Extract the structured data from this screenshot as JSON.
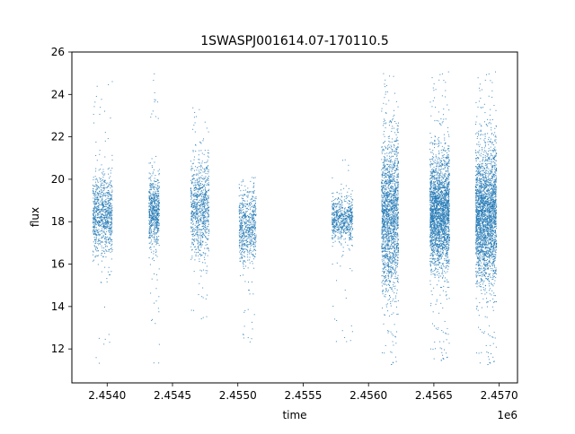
{
  "chart_data": {
    "type": "scatter",
    "title": "1SWASPJ001614.07-170110.5",
    "xlabel": "time",
    "ylabel": "flux",
    "x_offset_label": "1e6",
    "xlim": [
      2453730,
      2457140
    ],
    "ylim": [
      10.4,
      26.0
    ],
    "x_ticks": [
      2454000,
      2454500,
      2455000,
      2455500,
      2456000,
      2456500,
      2457000
    ],
    "x_tick_labels": [
      "2.4540",
      "2.4545",
      "2.4550",
      "2.4555",
      "2.4560",
      "2.4565",
      "2.4570"
    ],
    "y_ticks": [
      12,
      14,
      16,
      18,
      20,
      22,
      24,
      26
    ],
    "y_tick_labels": [
      "12",
      "14",
      "16",
      "18",
      "20",
      "22",
      "24",
      "26"
    ],
    "grid": false,
    "marker_color": "#1f77b4",
    "series": [
      {
        "clusters": [
          {
            "x_start": 2453890,
            "x_end": 2454040,
            "center": 18.3,
            "spread": 1.7,
            "y_min": 11.1,
            "y_max": 24.8,
            "density": 900
          },
          {
            "x_start": 2454320,
            "x_end": 2454400,
            "center": 18.4,
            "spread": 1.5,
            "y_min": 11.3,
            "y_max": 25.0,
            "density": 650
          },
          {
            "x_start": 2454640,
            "x_end": 2454780,
            "center": 18.6,
            "spread": 2.0,
            "y_min": 13.3,
            "y_max": 23.6,
            "density": 850
          },
          {
            "x_start": 2455010,
            "x_end": 2455140,
            "center": 17.9,
            "spread": 1.6,
            "y_min": 12.1,
            "y_max": 20.1,
            "density": 650
          },
          {
            "x_start": 2455720,
            "x_end": 2455880,
            "center": 18.1,
            "spread": 0.9,
            "y_min": 12.2,
            "y_max": 21.0,
            "density": 650
          },
          {
            "x_start": 2456100,
            "x_end": 2456230,
            "center": 18.3,
            "spread": 3.2,
            "y_min": 11.1,
            "y_max": 25.3,
            "density": 1800
          },
          {
            "x_start": 2456470,
            "x_end": 2456620,
            "center": 18.4,
            "spread": 2.4,
            "y_min": 11.3,
            "y_max": 25.1,
            "density": 2400
          },
          {
            "x_start": 2456820,
            "x_end": 2456980,
            "center": 18.3,
            "spread": 2.8,
            "y_min": 11.1,
            "y_max": 25.1,
            "density": 2600
          }
        ]
      }
    ]
  }
}
